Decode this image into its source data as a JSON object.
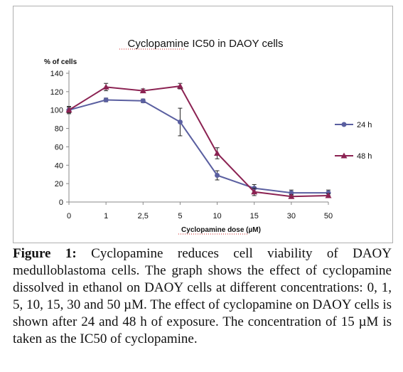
{
  "chart_data": {
    "type": "line",
    "title": "Cyclopamine IC50 in DAOY cells",
    "ylabel": "% of cells",
    "xlabel": "Cyclopamine dose (µM)",
    "categories": [
      "0",
      "1",
      "2,5",
      "5",
      "10",
      "15",
      "30",
      "50"
    ],
    "ylim": [
      0,
      140
    ],
    "yticks": [
      "0",
      "20",
      "40",
      "60",
      "80",
      "100",
      "120",
      "140"
    ],
    "ytick_values": [
      0,
      20,
      40,
      60,
      80,
      100,
      120,
      140
    ],
    "grid": false,
    "legend_position": "right",
    "series": [
      {
        "name": "24 h",
        "color": "#5a5fa0",
        "marker": "circle",
        "values": [
          100,
          111,
          110,
          87,
          29,
          15,
          10,
          10
        ],
        "errors": [
          4,
          2,
          2,
          15,
          5,
          4,
          3,
          3
        ]
      },
      {
        "name": "48 h",
        "color": "#8b2252",
        "marker": "triangle",
        "values": [
          100,
          125,
          121,
          126,
          53,
          11,
          6,
          7
        ],
        "errors": [
          3,
          4,
          2,
          3,
          6,
          4,
          2,
          2
        ]
      }
    ]
  },
  "caption": {
    "label": "Figure 1:",
    "text": "Cyclopamine reduces cell viability of DAOY medulloblastoma cells. The graph shows the effect of cyclopamine dissolved in ethanol on DAOY cells at different concentrations: 0, 1, 5, 10, 15, 30 and 50 µM. The effect of cyclopamine on DAOY cells is shown after 24 and 48 h of exposure. The concentration of 15 µM is taken as the IC50 of cyclopamine."
  }
}
